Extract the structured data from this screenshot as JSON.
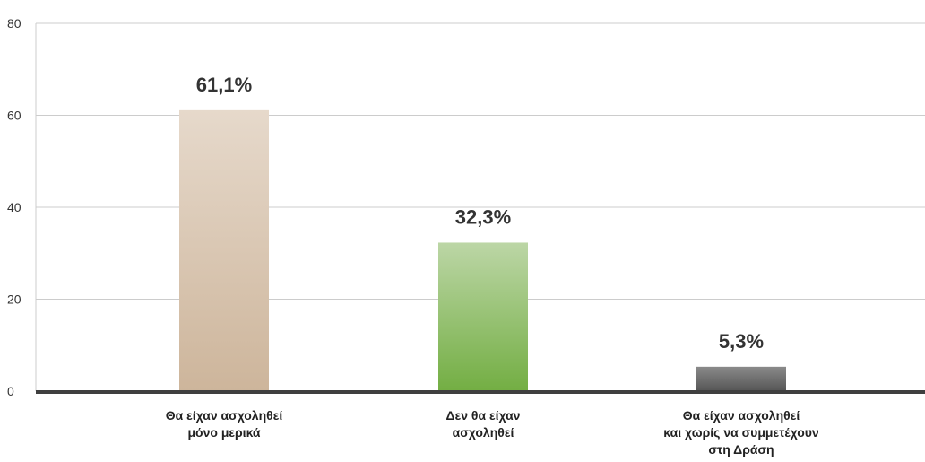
{
  "chart_data": {
    "type": "bar",
    "title": "",
    "xlabel": "",
    "ylabel": "",
    "ylim": [
      0,
      80
    ],
    "yticks": [
      "0",
      "20",
      "40",
      "60",
      "80"
    ],
    "grid": true,
    "categories": [
      [
        "Θα είχαν ασχοληθεί",
        "μόνο μερικά"
      ],
      [
        "Δεν θα είχαν",
        "ασχοληθεί"
      ],
      [
        "Θα είχαν ασχοληθεί",
        "και χωρίς να συμμετέχουν",
        "στη Δράση"
      ]
    ],
    "values": [
      61.1,
      32.3,
      5.3
    ],
    "data_labels": [
      "61,1%",
      "32,3%",
      "5,3%"
    ],
    "colors": [
      [
        "#e6d9cb",
        "#cdb59b"
      ],
      [
        "#bcd6a6",
        "#73ae43"
      ],
      [
        "#8a8a8a",
        "#555555"
      ]
    ],
    "gridline_color": "#cccccc",
    "axis_color": "#3f3f3f"
  }
}
